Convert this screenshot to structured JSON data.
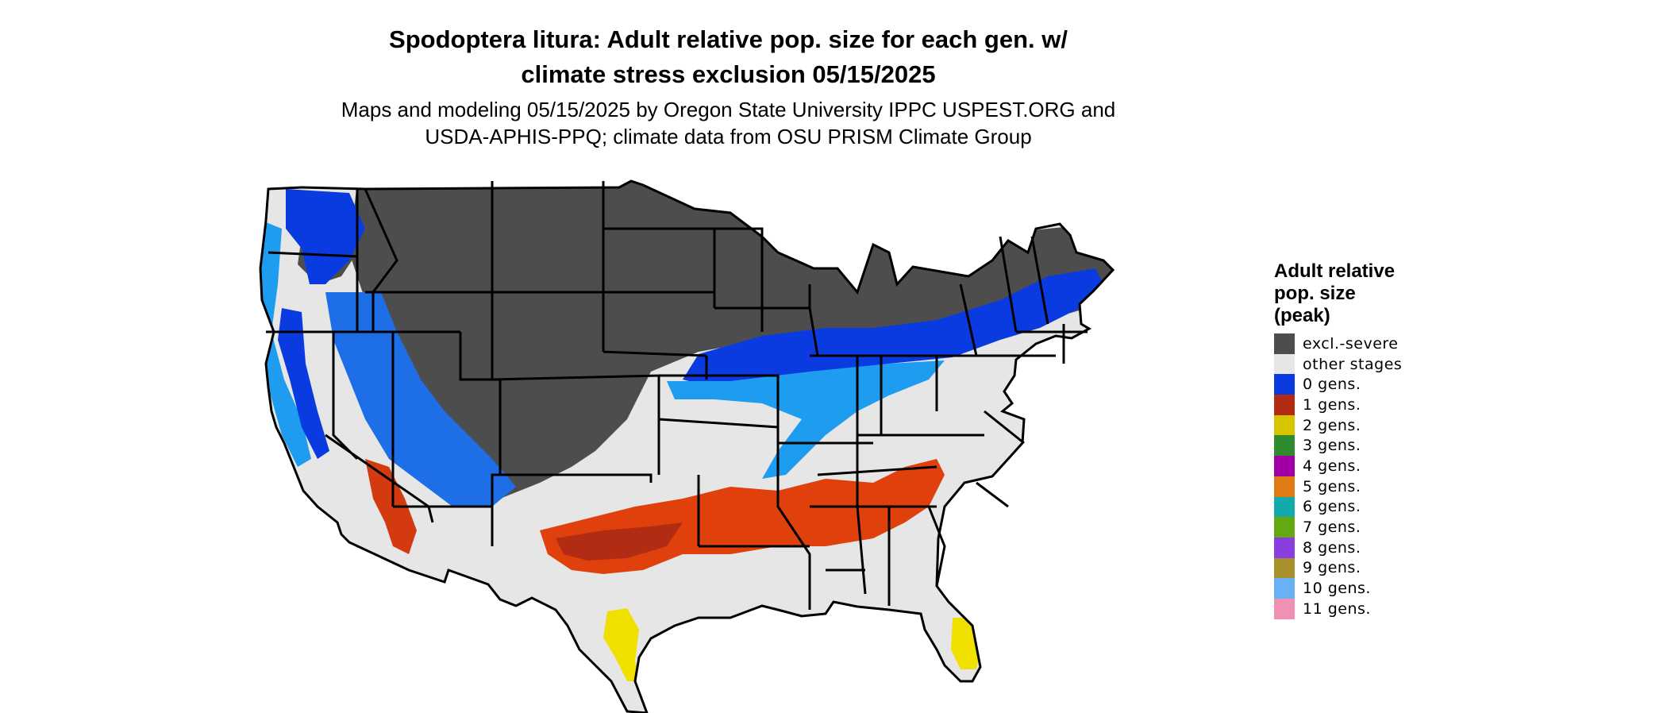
{
  "title_line1": "Spodoptera litura: Adult relative pop. size for each gen. w/",
  "title_line2": "climate stress exclusion 05/15/2025",
  "subtitle_line1": "Maps and modeling 05/15/2025 by Oregon State University IPPC USPEST.ORG and",
  "subtitle_line2": "USDA-APHIS-PPQ; climate data from OSU PRISM Climate Group",
  "legend": {
    "title_lines": [
      "Adult relative",
      "pop. size",
      "(peak)"
    ],
    "items": [
      {
        "label": "excl.-severe",
        "color": "#4d4d4d"
      },
      {
        "label": "other stages",
        "color": "#e6e6e6"
      },
      {
        "label": "0 gens.",
        "color": "#0a3be0"
      },
      {
        "label": "1 gens.",
        "color": "#b22c14"
      },
      {
        "label": "2 gens.",
        "color": "#d9c400"
      },
      {
        "label": "3 gens.",
        "color": "#2e8b2e"
      },
      {
        "label": "4 gens.",
        "color": "#a000a6"
      },
      {
        "label": "5 gens.",
        "color": "#e07a12"
      },
      {
        "label": "6 gens.",
        "color": "#12aaaa"
      },
      {
        "label": "7 gens.",
        "color": "#64a812"
      },
      {
        "label": "8 gens.",
        "color": "#8a3ee0"
      },
      {
        "label": "9 gens.",
        "color": "#a8902a"
      },
      {
        "label": "10 gens.",
        "color": "#6ab0f4"
      },
      {
        "label": "11 gens.",
        "color": "#f090b4"
      }
    ]
  },
  "map_colors": {
    "excluded": "#4d4d4d",
    "background_land": "#e6e6e6",
    "gen0": "#0a3be0",
    "gen0_light": "#1e9cf0",
    "gen1": "#e0400c",
    "gen1_dark": "#b22c14",
    "gen2": "#f0e000",
    "border": "#000000"
  }
}
